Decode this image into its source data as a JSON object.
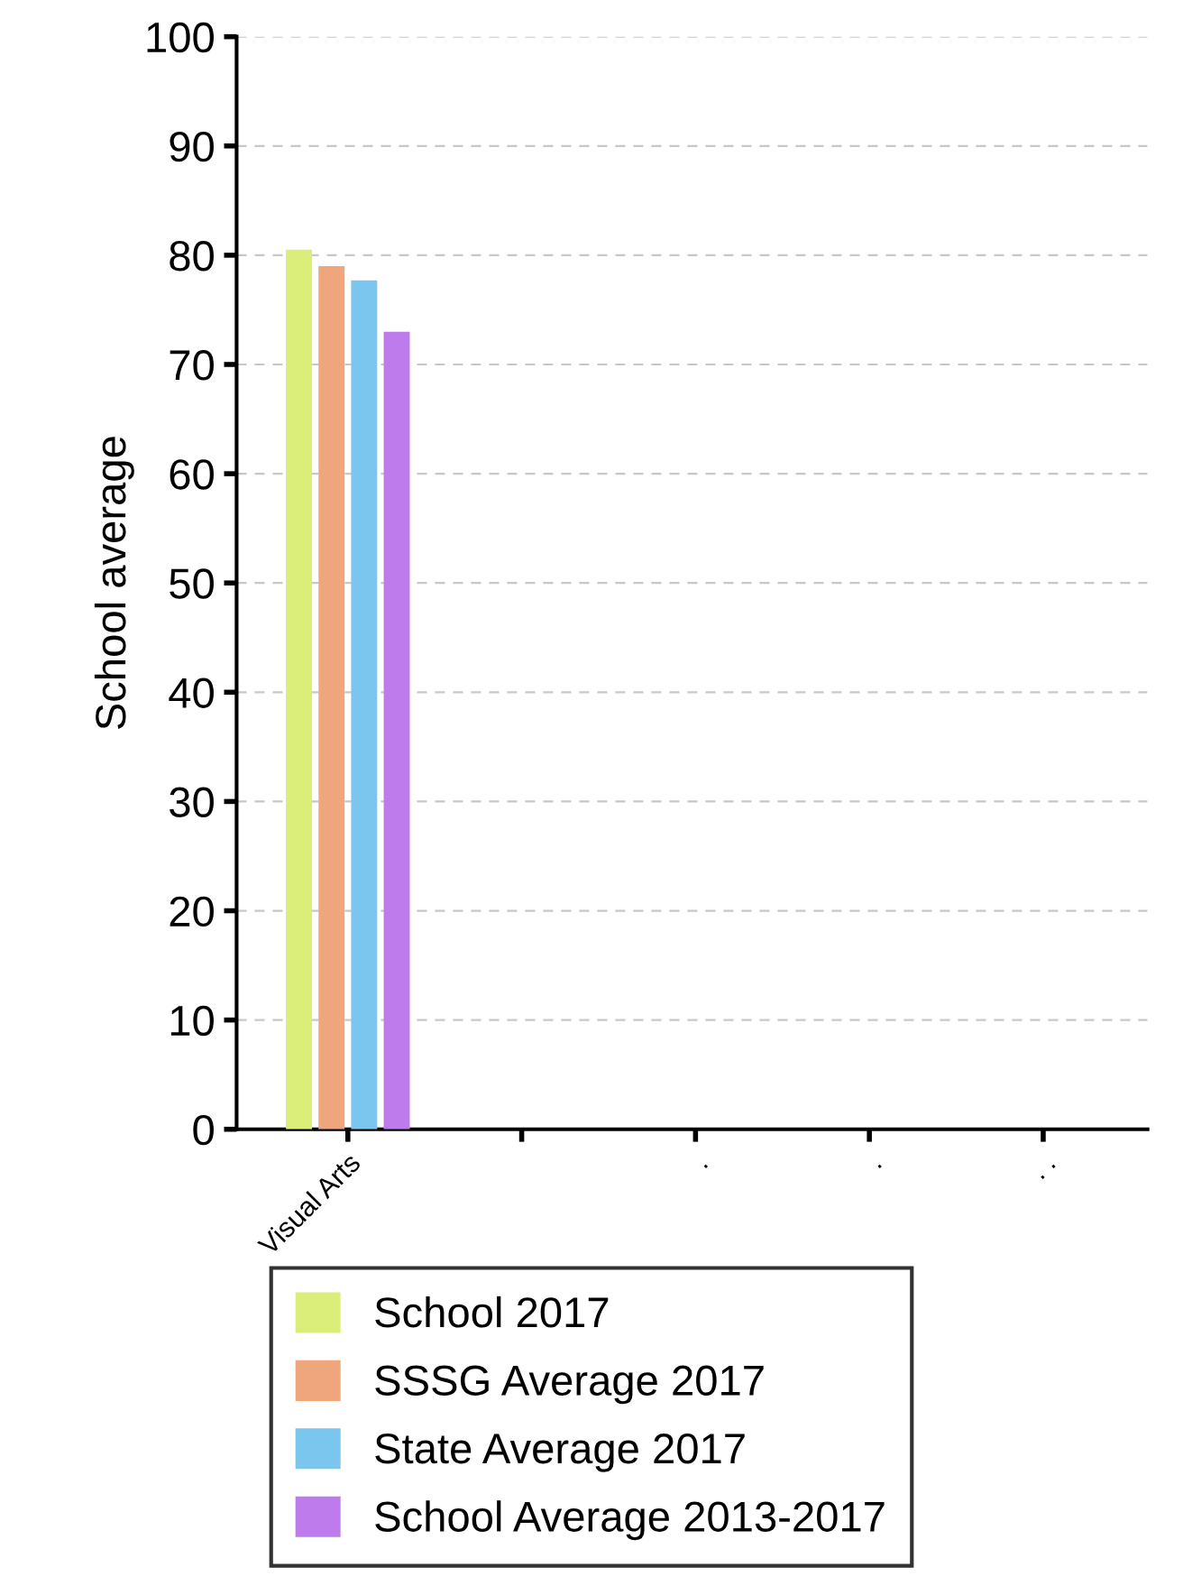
{
  "chart_data": {
    "type": "bar",
    "ylabel": "School average",
    "categories": [
      "Visual Arts",
      null,
      ".",
      ".",
      ". ."
    ],
    "series": [
      {
        "name": "School 2017",
        "color": "#dcee7a",
        "values": [
          80.5,
          null,
          null,
          null,
          null
        ]
      },
      {
        "name": "SSSG Average 2017",
        "color": "#f0a67c",
        "values": [
          79,
          null,
          null,
          null,
          null
        ]
      },
      {
        "name": "State Average 2017",
        "color": "#7bc6ee",
        "values": [
          77.7,
          null,
          null,
          null,
          null
        ]
      },
      {
        "name": "School Average 2013-2017",
        "color": "#bd7bec",
        "values": [
          73,
          null,
          null,
          null,
          null
        ]
      }
    ],
    "ylim": [
      0,
      100
    ],
    "yticks": [
      0,
      10,
      20,
      30,
      40,
      50,
      60,
      70,
      80,
      90,
      100
    ],
    "grid": "y",
    "legend": "bottom"
  }
}
